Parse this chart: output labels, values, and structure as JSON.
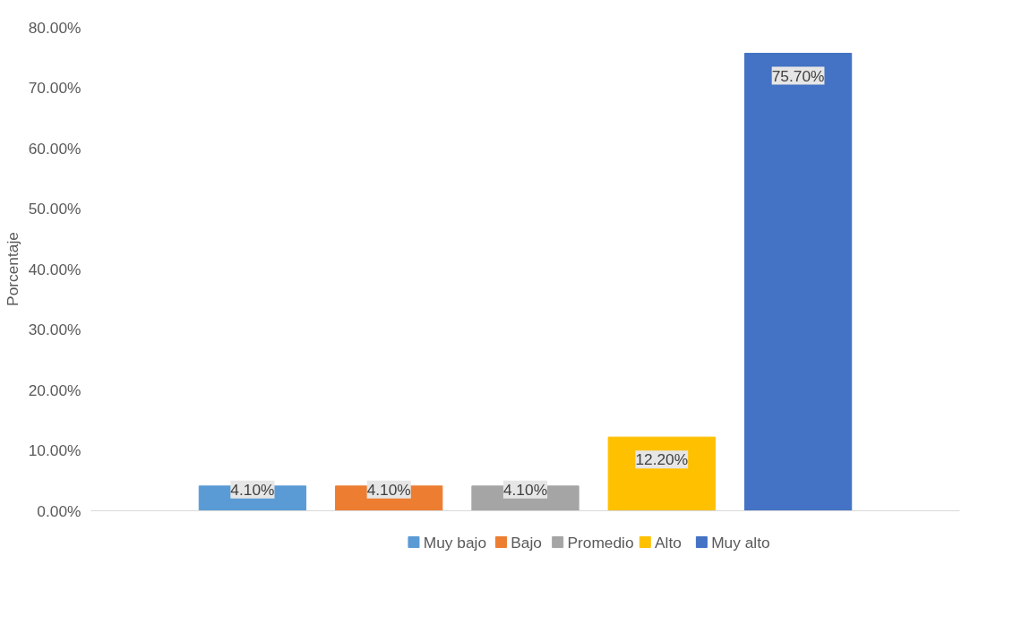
{
  "chart_data": {
    "type": "bar",
    "ylabel": "Porcentaje",
    "categories": [
      null
    ],
    "series": [
      {
        "name": "Muy bajo",
        "color": "#5b9bd5",
        "values": [
          4.1
        ],
        "value_labels": [
          "4.10%"
        ]
      },
      {
        "name": "Bajo",
        "color": "#ed7d31",
        "values": [
          4.1
        ],
        "value_labels": [
          "4.10%"
        ]
      },
      {
        "name": "Promedio",
        "color": "#a5a5a5",
        "values": [
          4.1
        ],
        "value_labels": [
          "4.10%"
        ]
      },
      {
        "name": "Alto",
        "color": "#ffc000",
        "values": [
          12.2
        ],
        "value_labels": [
          "12.20%"
        ]
      },
      {
        "name": "Muy alto",
        "color": "#4472c4",
        "values": [
          75.7
        ],
        "value_labels": [
          "75.70%"
        ]
      }
    ],
    "ylim": [
      0,
      80
    ],
    "yticks": [
      {
        "value": 0,
        "label": "0.00%"
      },
      {
        "value": 10,
        "label": "10.00%"
      },
      {
        "value": 20,
        "label": "20.00%"
      },
      {
        "value": 30,
        "label": "30.00%"
      },
      {
        "value": 40,
        "label": "40.00%"
      },
      {
        "value": 50,
        "label": "50.00%"
      },
      {
        "value": 60,
        "label": "60.00%"
      },
      {
        "value": 70,
        "label": "70.00%"
      },
      {
        "value": 80,
        "label": "80.00%"
      }
    ],
    "grid": false,
    "legend": "bottom"
  }
}
